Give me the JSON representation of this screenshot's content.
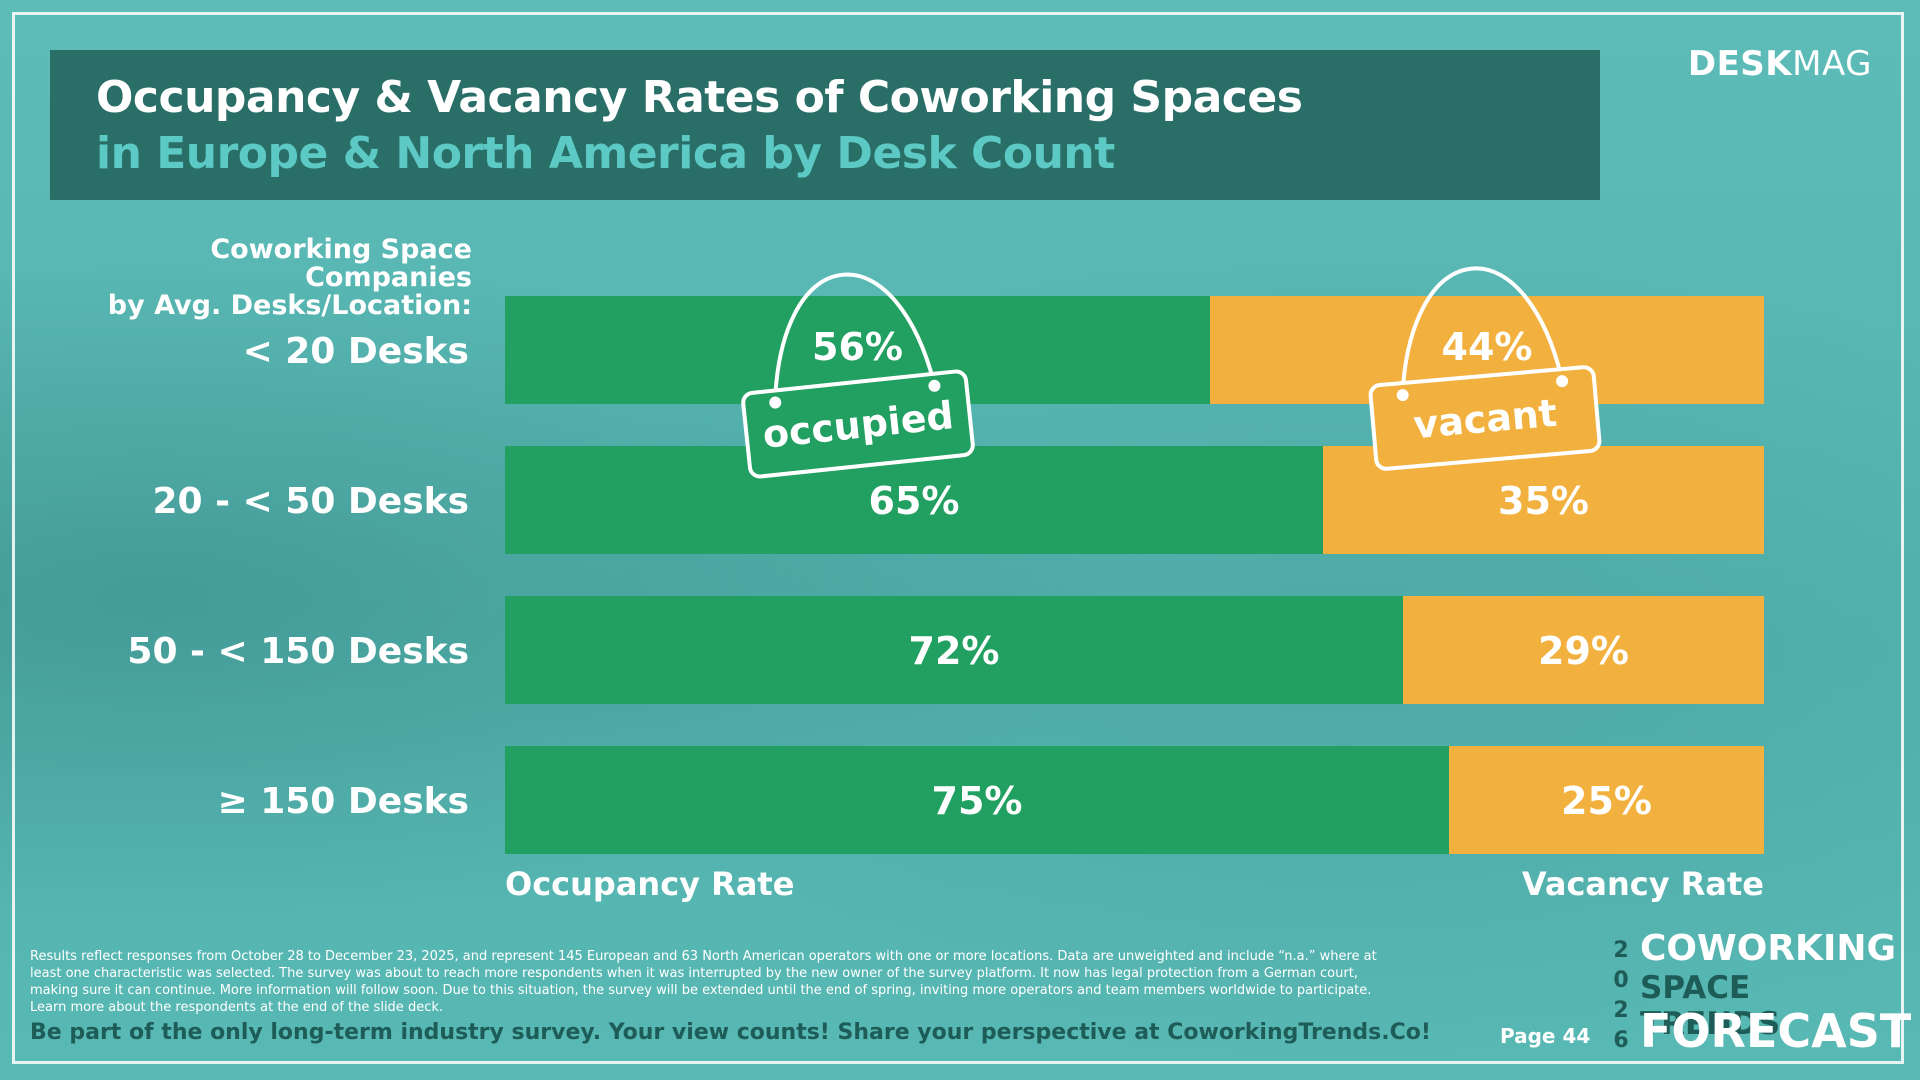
{
  "header": {
    "title_line1": "Occupancy & Vacancy Rates of Coworking Spaces",
    "title_line2": "in Europe & North America by Desk Count"
  },
  "brand": {
    "part1": "DESK",
    "part2": "MAG"
  },
  "axis_title": {
    "line1": "Coworking Space Companies",
    "line2": "by Avg. Desks/Location:"
  },
  "signs": {
    "occupied": "occupied",
    "vacant": "vacant"
  },
  "chart_data": {
    "type": "bar",
    "orientation": "horizontal",
    "stacked": true,
    "categories": [
      "< 20 Desks",
      "20 - < 50 Desks",
      "50 - < 150 Desks",
      "≥ 150 Desks"
    ],
    "series": [
      {
        "name": "Occupancy Rate",
        "values": [
          56,
          65,
          72,
          75
        ],
        "color": "#21a061"
      },
      {
        "name": "Vacancy Rate",
        "values": [
          44,
          35,
          29,
          25
        ],
        "color": "#f2b13f"
      }
    ],
    "value_labels": [
      [
        "56%",
        "44%"
      ],
      [
        "65%",
        "35%"
      ],
      [
        "72%",
        "29%"
      ],
      [
        "75%",
        "25%"
      ]
    ],
    "legend_position": "bottom"
  },
  "footer": {
    "footnote_1": "Results reflect responses from October 28 to December 23, 2025, and represent 145 European and 63 North American operators with one or more locations. Data are unweighted and include “n.a.” where at",
    "footnote_2": "least one characteristic was selected. The survey was about to reach more respondents when it was interrupted by the new owner of the survey platform. It now has legal protection from a German court,",
    "footnote_3": "making sure it can continue. More information will follow soon. Due to this situation, the survey will be extended until the end of spring, inviting more operators and team members worldwide to participate.",
    "footnote_4": "Learn more about the respondents at the end of the slide deck.",
    "cta": "Be part of the only long-term industry survey. Your view counts! Share your perspective at CoworkingTrends.Co!",
    "page": "Page 44"
  },
  "forecast_logo": {
    "digits": [
      "2",
      "0",
      "2",
      "6"
    ],
    "line1": "COWORKING",
    "line2": "SPACE TRENDS",
    "line3": "FORECAST"
  }
}
